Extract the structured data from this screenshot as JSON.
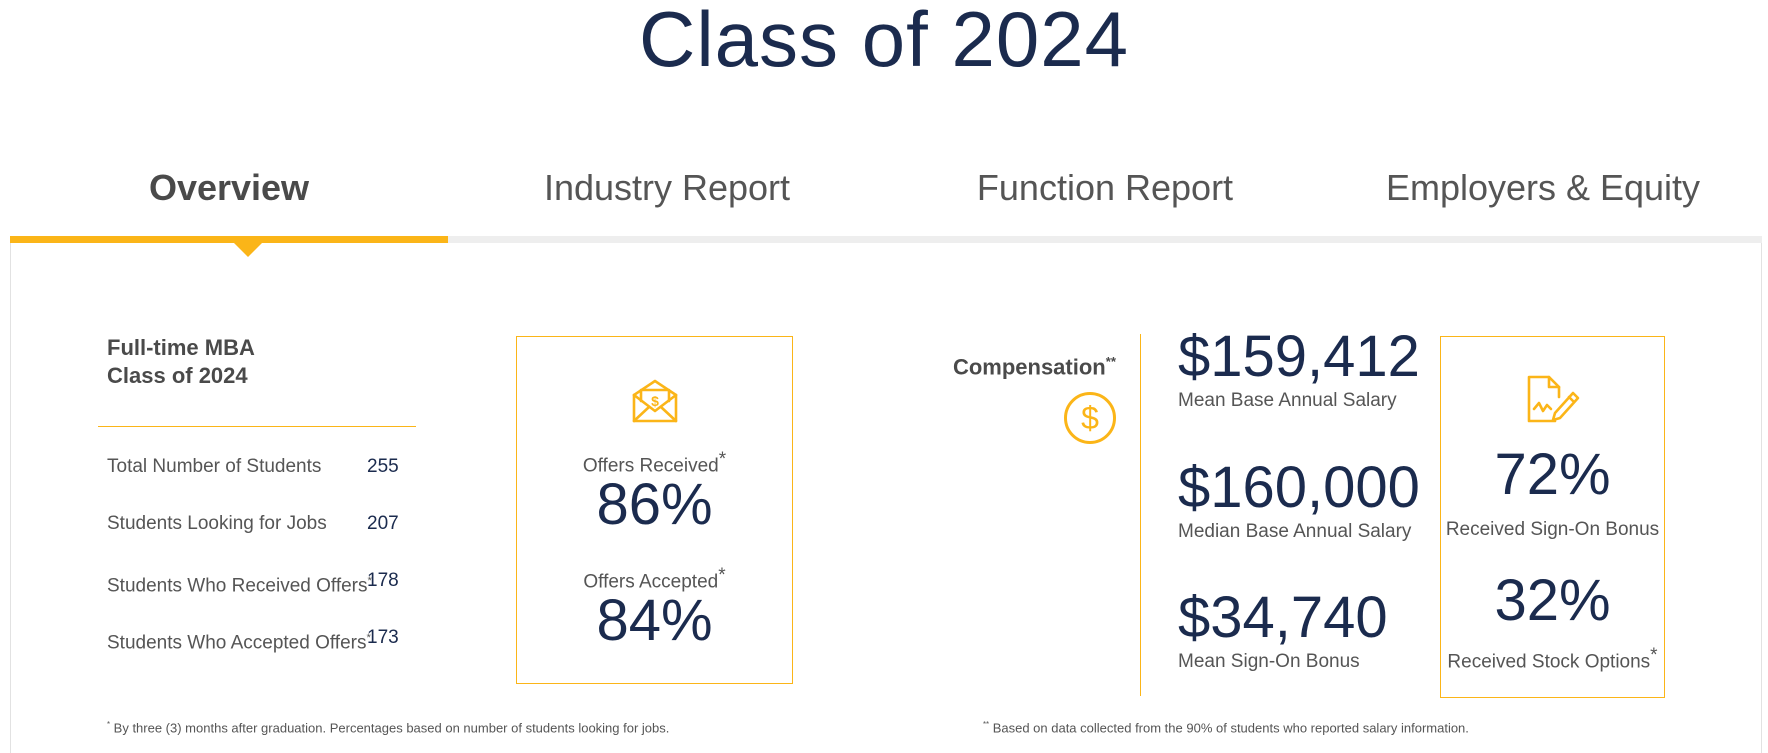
{
  "page": {
    "title": "Class of 2024"
  },
  "tabs": [
    {
      "label": "Overview",
      "active": true
    },
    {
      "label": "Industry Report",
      "active": false
    },
    {
      "label": "Function Report",
      "active": false
    },
    {
      "label": "Employers & Equity",
      "active": false
    }
  ],
  "summary": {
    "title_line1": "Full-time MBA",
    "title_line2": "Class of 2024",
    "rows": [
      {
        "label": "Total Number of Students",
        "value": "255"
      },
      {
        "label": "Students Looking for Jobs",
        "value": "207"
      },
      {
        "label": "Students Who Received Offers",
        "mark": "*",
        "value": "178"
      },
      {
        "label": "Students Who Accepted Offers",
        "mark": "*",
        "value": "173"
      }
    ]
  },
  "offers": {
    "received_label": "Offers Received",
    "received_mark": "*",
    "received_value": "86%",
    "accepted_label": "Offers Accepted",
    "accepted_mark": "*",
    "accepted_value": "84%",
    "icon": "envelope-dollar-icon"
  },
  "compensation": {
    "title": "Compensation",
    "mark": "**",
    "icon": "dollar-circle-icon",
    "items": [
      {
        "value": "$159,412",
        "label": "Mean Base Annual Salary"
      },
      {
        "value": "$160,000",
        "label": "Median Base Annual Salary"
      },
      {
        "value": "$34,740",
        "label": "Mean Sign-On Bonus"
      }
    ]
  },
  "bonus": {
    "icon": "signed-document-icon",
    "sign_on_value": "72%",
    "sign_on_label": "Received Sign-On Bonus",
    "stock_value": "32%",
    "stock_label": "Received Stock Options",
    "stock_mark": "*"
  },
  "footnotes": {
    "left_mark": "*",
    "left": " By three (3) months after graduation. Percentages based on number of students looking for jobs.",
    "right_mark": "**",
    "right": " Based on data collected from the 90% of students who reported salary information."
  },
  "colors": {
    "accent": "#fbb518",
    "navy": "#1b2b4e",
    "text": "#555555"
  }
}
